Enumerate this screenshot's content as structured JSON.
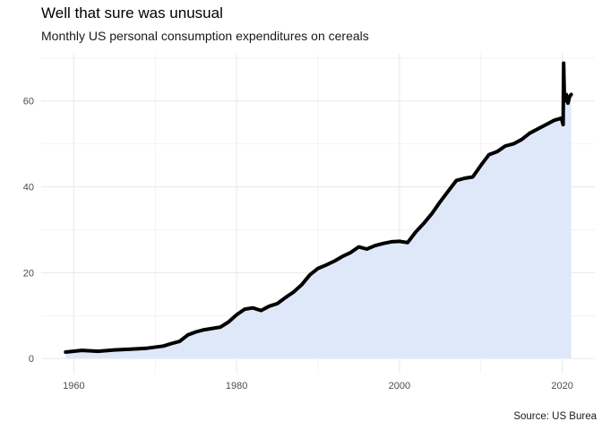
{
  "title": "Well that sure was unusual",
  "subtitle": "Monthly US personal consumption expenditures on cereals",
  "caption": "Source: US Burea",
  "colors": {
    "area": "#dfe8f8",
    "line": "#000000",
    "grid": "#ebebeb"
  },
  "chart_data": {
    "type": "area",
    "title": "Well that sure was unusual",
    "subtitle": "Monthly US personal consumption expenditures on cereals",
    "xlabel": "",
    "ylabel": "",
    "xlim": [
      1956,
      2024
    ],
    "ylim": [
      -3.5,
      71
    ],
    "x_ticks": [
      1960,
      1980,
      2000,
      2020
    ],
    "y_ticks": [
      0,
      20,
      40,
      60
    ],
    "grid": true,
    "legend": "none",
    "x": [
      1959,
      1961,
      1963,
      1965,
      1967,
      1969,
      1971,
      1972,
      1973,
      1974,
      1975,
      1976,
      1978,
      1979,
      1980,
      1981,
      1982,
      1983,
      1984,
      1985,
      1986,
      1987,
      1988,
      1989,
      1990,
      1991,
      1992,
      1993,
      1994,
      1995,
      1996,
      1997,
      1998,
      1999,
      2000,
      2001,
      2002,
      2003,
      2004,
      2005,
      2006,
      2007,
      2008,
      2009,
      2010,
      2011,
      2012,
      2013,
      2014,
      2015,
      2016,
      2017,
      2018,
      2019,
      2019.9,
      2020.1,
      2020.17,
      2020.25,
      2020.33,
      2020.5,
      2020.7,
      2020.9,
      2021.1
    ],
    "y": [
      1.5,
      1.9,
      1.7,
      2.0,
      2.2,
      2.4,
      2.9,
      3.5,
      4.0,
      5.5,
      6.2,
      6.7,
      7.3,
      8.5,
      10.2,
      11.5,
      11.8,
      11.2,
      12.2,
      12.8,
      14.2,
      15.5,
      17.2,
      19.5,
      21.0,
      21.8,
      22.7,
      23.8,
      24.7,
      26.0,
      25.5,
      26.3,
      26.8,
      27.2,
      27.3,
      27.0,
      29.5,
      31.5,
      33.8,
      36.5,
      39.0,
      41.5,
      42.0,
      42.3,
      45.0,
      47.5,
      48.2,
      49.5,
      50.0,
      51.0,
      52.5,
      53.5,
      54.5,
      55.5,
      56.0,
      54.5,
      68.8,
      62.0,
      60.0,
      61.5,
      59.5,
      61.0,
      61.5
    ]
  }
}
